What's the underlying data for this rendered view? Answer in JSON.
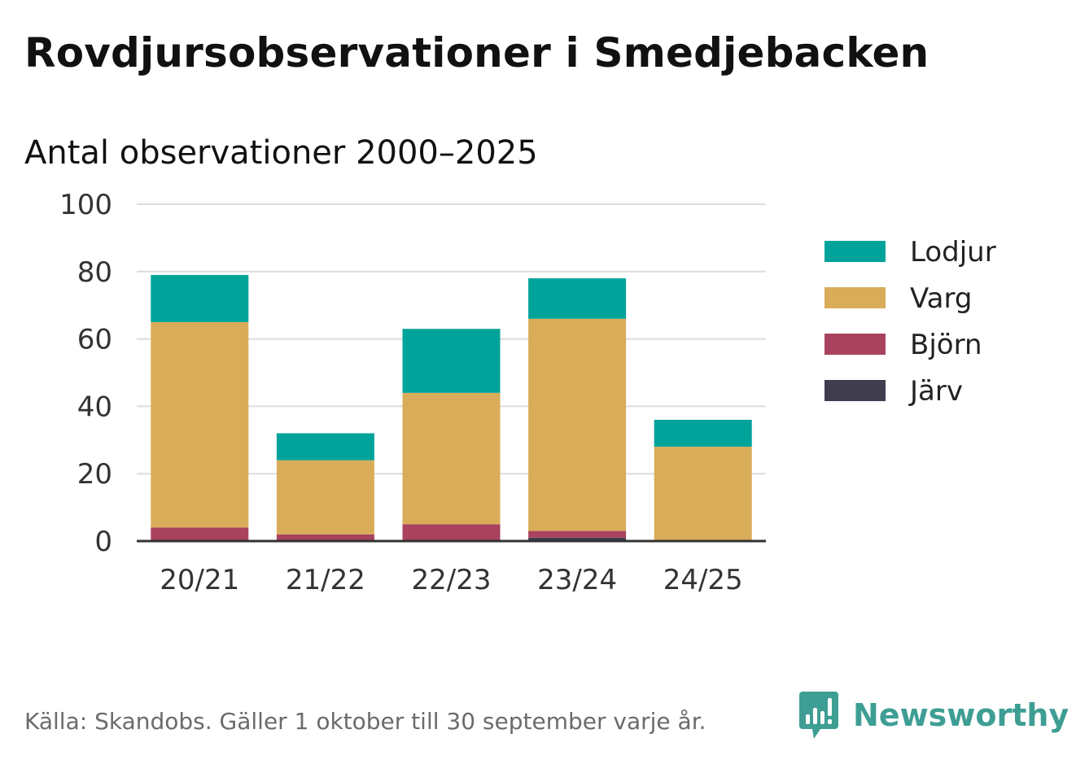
{
  "title": "Rovdjursobservationer i Smedjebacken",
  "subtitle": "Antal observationer 2000–2025",
  "footer": {
    "source": "Källa: Skandobs. Gäller 1 oktober till 30 september varje år.",
    "brand": "Newsworthy",
    "brand_icon": "newsworthy-logo-icon",
    "brand_color": "#3e9e94"
  },
  "chart_data": {
    "type": "bar",
    "stacked": true,
    "categories": [
      "20/21",
      "21/22",
      "22/23",
      "23/24",
      "24/25"
    ],
    "ylim": [
      0,
      100
    ],
    "yticks": [
      0,
      20,
      40,
      60,
      80,
      100
    ],
    "grid": true,
    "legend_position": "right",
    "series": [
      {
        "name": "Järv",
        "color": "#3f3d4e",
        "values": [
          0,
          0,
          0,
          1,
          0
        ]
      },
      {
        "name": "Björn",
        "color": "#a8425e",
        "values": [
          4,
          2,
          5,
          2,
          0
        ]
      },
      {
        "name": "Varg",
        "color": "#d9ac59",
        "values": [
          61,
          22,
          39,
          63,
          28
        ]
      },
      {
        "name": "Lodjur",
        "color": "#00a39a",
        "values": [
          14,
          8,
          19,
          12,
          8
        ]
      }
    ],
    "legend_order": [
      "Lodjur",
      "Varg",
      "Björn",
      "Järv"
    ]
  }
}
